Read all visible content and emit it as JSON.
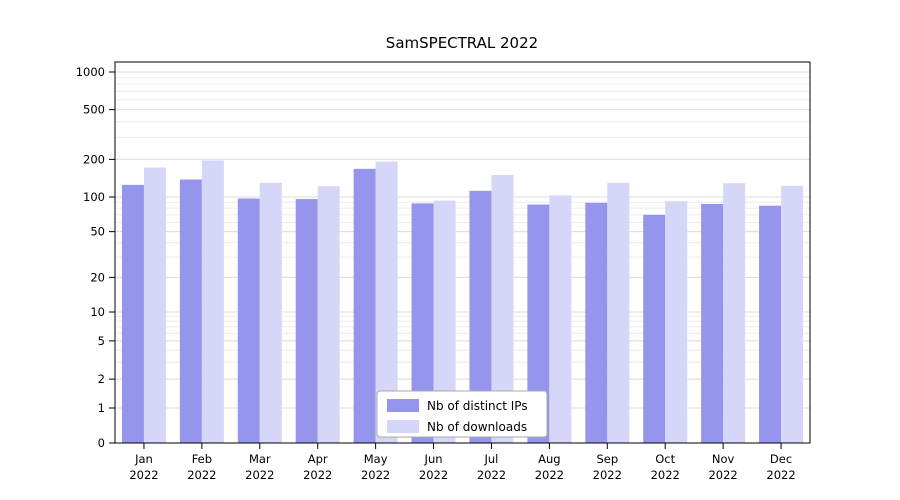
{
  "page": {
    "background": "#ffffff"
  },
  "chart_data": {
    "type": "bar",
    "title": "SamSPECTRAL 2022",
    "year": "2022",
    "categories": [
      "Jan",
      "Feb",
      "Mar",
      "Apr",
      "May",
      "Jun",
      "Jul",
      "Aug",
      "Sep",
      "Oct",
      "Nov",
      "Dec"
    ],
    "series": [
      {
        "name": "Nb of distinct IPs",
        "color": "#9595ee",
        "values": [
          125,
          138,
          97,
          96,
          168,
          88,
          112,
          86,
          89,
          70,
          87,
          84
        ]
      },
      {
        "name": "Nb of downloads",
        "color": "#d6d6f8",
        "values": [
          172,
          196,
          130,
          122,
          192,
          93,
          150,
          103,
          130,
          92,
          129,
          123
        ]
      }
    ],
    "yticks": [
      0,
      1,
      2,
      5,
      10,
      20,
      50,
      100,
      200,
      500,
      1000
    ],
    "ylim": [
      0,
      1000
    ],
    "yscale": "pseudo-log",
    "xlabel": "",
    "ylabel": "",
    "grid": true,
    "legend_position": "bottom-center",
    "colors": {
      "grid_minor": "#ececec",
      "grid_major": "#dddddd",
      "axis": "#000000",
      "legend_border": "#aaaaaa",
      "legend_bg": "#ffffff"
    }
  }
}
